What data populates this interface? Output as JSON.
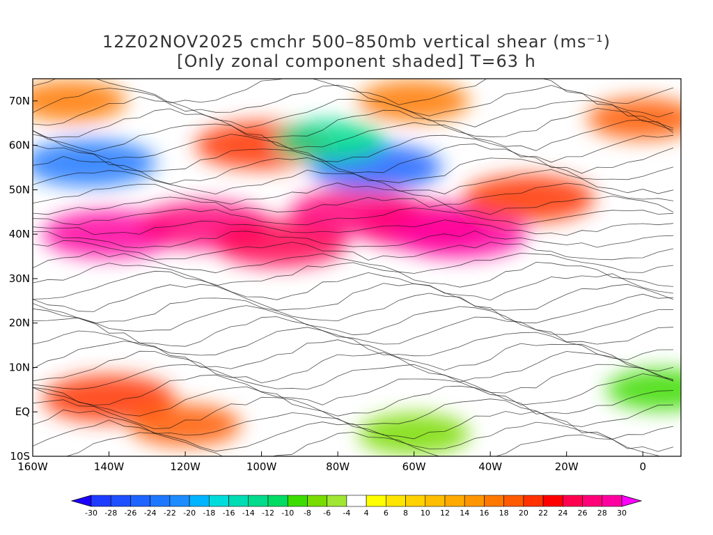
{
  "title": {
    "line1": "12Z02NOV2025 cmchr 500–850mb vertical shear (ms⁻¹)",
    "line2": "[Only zonal component shaded] T=63 h"
  },
  "axes": {
    "lon_range": [
      -160,
      10
    ],
    "lat_range": [
      -10,
      75
    ],
    "lat_ticks": [
      {
        "value": 70,
        "label": "70N"
      },
      {
        "value": 60,
        "label": "60N"
      },
      {
        "value": 50,
        "label": "50N"
      },
      {
        "value": 40,
        "label": "40N"
      },
      {
        "value": 30,
        "label": "30N"
      },
      {
        "value": 20,
        "label": "20N"
      },
      {
        "value": 10,
        "label": "10N"
      },
      {
        "value": 0,
        "label": "EQ"
      },
      {
        "value": -10,
        "label": "10S"
      }
    ],
    "lon_ticks": [
      {
        "value": -160,
        "label": "160W"
      },
      {
        "value": -140,
        "label": "140W"
      },
      {
        "value": -120,
        "label": "120W"
      },
      {
        "value": -100,
        "label": "100W"
      },
      {
        "value": -80,
        "label": "80W"
      },
      {
        "value": -60,
        "label": "60W"
      },
      {
        "value": -40,
        "label": "40W"
      },
      {
        "value": -20,
        "label": "20W"
      },
      {
        "value": 0,
        "label": "0"
      }
    ]
  },
  "colorbar": {
    "labels": [
      "-30",
      "-28",
      "-26",
      "-24",
      "-22",
      "-20",
      "-18",
      "-16",
      "-14",
      "-12",
      "-10",
      "-8",
      "-6",
      "-4",
      "4",
      "6",
      "8",
      "10",
      "12",
      "14",
      "16",
      "18",
      "20",
      "22",
      "24",
      "26",
      "28",
      "30"
    ],
    "colors": [
      "#1e3cff",
      "#1e50ff",
      "#1e64ff",
      "#1e78ff",
      "#1e8cff",
      "#00b4ff",
      "#00dcdc",
      "#00dcb4",
      "#00dc8c",
      "#00dc64",
      "#3cdc00",
      "#78dc00",
      "#a0e632",
      "#ffffff",
      "#ffff00",
      "#ffe600",
      "#ffd200",
      "#ffbe00",
      "#ffaa00",
      "#ff9600",
      "#ff7800",
      "#ff5a00",
      "#ff3200",
      "#ff0000",
      "#ff0050",
      "#ff0078",
      "#ff00a0"
    ],
    "below_color": "#1e00ff",
    "above_color": "#ff00ff"
  },
  "shaded_regions": [
    {
      "lon": -140,
      "lat": 40,
      "value": 28
    },
    {
      "lon": -115,
      "lat": 42,
      "value": 26
    },
    {
      "lon": -95,
      "lat": 38,
      "value": 24
    },
    {
      "lon": -75,
      "lat": 45,
      "value": 26
    },
    {
      "lon": -58,
      "lat": 42,
      "value": 26
    },
    {
      "lon": -48,
      "lat": 40,
      "value": 28
    },
    {
      "lon": -30,
      "lat": 48,
      "value": 20
    },
    {
      "lon": -150,
      "lat": 70,
      "value": 16
    },
    {
      "lon": -100,
      "lat": 60,
      "value": 20
    },
    {
      "lon": -60,
      "lat": 70,
      "value": 16
    },
    {
      "lon": 0,
      "lat": 66,
      "value": 18
    },
    {
      "lon": -140,
      "lat": 3,
      "value": 20
    },
    {
      "lon": -120,
      "lat": -3,
      "value": 18
    },
    {
      "lon": -145,
      "lat": 56,
      "value": -24
    },
    {
      "lon": -70,
      "lat": 55,
      "value": -26
    },
    {
      "lon": -82,
      "lat": 61,
      "value": -14
    },
    {
      "lon": -60,
      "lat": -5,
      "value": -8
    },
    {
      "lon": 5,
      "lat": 5,
      "value": -10
    }
  ]
}
